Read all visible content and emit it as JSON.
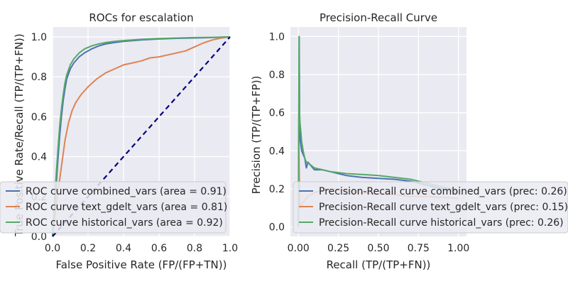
{
  "chart_data": [
    {
      "type": "line",
      "title": "ROCs for escalation",
      "xlabel": "False Positive Rate (FP/(FP+TN))",
      "ylabel": "True Positive Rate/Recall (TP/(TP+FN))",
      "xlim": [
        0,
        1
      ],
      "ylim": [
        0,
        1.05
      ],
      "xticks": [
        "0.0",
        "0.2",
        "0.4",
        "0.6",
        "0.8",
        "1.0"
      ],
      "yticks": [
        "0.0",
        "0.2",
        "0.4",
        "0.6",
        "0.8",
        "1.0"
      ],
      "grid": true,
      "legend_position": "lower-right",
      "series": [
        {
          "name": "ROC curve combined_vars (area = 0.91)",
          "color": "#4c72b0",
          "x": [
            0,
            0.01,
            0.02,
            0.03,
            0.04,
            0.05,
            0.06,
            0.07,
            0.08,
            0.1,
            0.12,
            0.15,
            0.18,
            0.22,
            0.26,
            0.3,
            0.35,
            0.4,
            0.5,
            0.6,
            0.7,
            0.8,
            0.9,
            1.0
          ],
          "y": [
            0,
            0.12,
            0.25,
            0.38,
            0.5,
            0.6,
            0.68,
            0.74,
            0.79,
            0.84,
            0.87,
            0.9,
            0.92,
            0.94,
            0.955,
            0.965,
            0.972,
            0.978,
            0.985,
            0.99,
            0.993,
            0.995,
            0.997,
            1.0
          ]
        },
        {
          "name": "ROC curve text_gdelt_vars (area = 0.81)",
          "color": "#dd8452",
          "x": [
            0,
            0.01,
            0.02,
            0.03,
            0.05,
            0.07,
            0.09,
            0.11,
            0.13,
            0.16,
            0.2,
            0.25,
            0.3,
            0.35,
            0.4,
            0.45,
            0.5,
            0.55,
            0.6,
            0.65,
            0.7,
            0.75,
            0.8,
            0.85,
            0.9,
            0.95,
            1.0
          ],
          "y": [
            0,
            0.08,
            0.15,
            0.22,
            0.35,
            0.48,
            0.57,
            0.63,
            0.67,
            0.71,
            0.75,
            0.79,
            0.82,
            0.84,
            0.86,
            0.87,
            0.88,
            0.895,
            0.9,
            0.91,
            0.92,
            0.93,
            0.95,
            0.97,
            0.985,
            0.995,
            1.0
          ]
        },
        {
          "name": "ROC curve historical_vars (area = 0.92)",
          "color": "#55a868",
          "x": [
            0,
            0.01,
            0.02,
            0.03,
            0.04,
            0.05,
            0.06,
            0.07,
            0.08,
            0.1,
            0.12,
            0.15,
            0.18,
            0.22,
            0.26,
            0.3,
            0.35,
            0.4,
            0.5,
            0.6,
            0.7,
            0.8,
            0.9,
            1.0
          ],
          "y": [
            0,
            0.15,
            0.3,
            0.43,
            0.55,
            0.64,
            0.71,
            0.77,
            0.81,
            0.86,
            0.89,
            0.92,
            0.94,
            0.955,
            0.965,
            0.972,
            0.978,
            0.982,
            0.988,
            0.992,
            0.995,
            0.997,
            0.998,
            1.0
          ]
        },
        {
          "name": "",
          "color": "#000080",
          "dashed": true,
          "x": [
            0,
            1
          ],
          "y": [
            0,
            1
          ]
        }
      ]
    },
    {
      "type": "line",
      "title": "Precision-Recall Curve",
      "xlabel": "Recall (TP/(TP+FN))",
      "ylabel": "Precision (TP/(TP+FP))",
      "xlim": [
        -0.05,
        1.05
      ],
      "ylim": [
        -0.05,
        1.05
      ],
      "xticks": [
        "0.00",
        "0.25",
        "0.50",
        "0.75",
        "1.00"
      ],
      "yticks": [
        "0.0",
        "0.2",
        "0.4",
        "0.6",
        "0.8",
        "1.0"
      ],
      "grid": true,
      "legend_position": "lower-right",
      "series": [
        {
          "name": "Precision-Recall curve combined_vars (prec: 0.26)",
          "color": "#4c72b0",
          "x": [
            0.0,
            0.005,
            0.008,
            0.012,
            0.02,
            0.03,
            0.04,
            0.05,
            0.06,
            0.08,
            0.1,
            0.15,
            0.2,
            0.25,
            0.3,
            0.4,
            0.5,
            0.6,
            0.7,
            0.8,
            0.9,
            1.0
          ],
          "y": [
            0.0,
            1.0,
            0.5,
            0.45,
            0.4,
            0.38,
            0.36,
            0.31,
            0.34,
            0.32,
            0.3,
            0.3,
            0.29,
            0.28,
            0.27,
            0.26,
            0.255,
            0.25,
            0.24,
            0.22,
            0.2,
            0.18
          ]
        },
        {
          "name": "Precision-Recall curve text_gdelt_vars (prec: 0.15)",
          "color": "#dd8452",
          "x": [
            0.0,
            0.003,
            0.006,
            0.01,
            0.02,
            0.04,
            0.06,
            0.1,
            0.15,
            0.2,
            0.3,
            0.4,
            0.5,
            0.6,
            0.7,
            0.8,
            0.9,
            1.0
          ],
          "y": [
            0.0,
            0.45,
            0.25,
            0.1,
            0.12,
            0.14,
            0.16,
            0.18,
            0.19,
            0.2,
            0.19,
            0.18,
            0.17,
            0.17,
            0.16,
            0.16,
            0.155,
            0.15
          ]
        },
        {
          "name": "Precision-Recall curve historical_vars (prec: 0.26)",
          "color": "#55a868",
          "x": [
            0.0,
            0.004,
            0.007,
            0.01,
            0.015,
            0.02,
            0.03,
            0.04,
            0.05,
            0.07,
            0.1,
            0.15,
            0.2,
            0.3,
            0.4,
            0.5,
            0.6,
            0.7,
            0.8,
            0.9,
            1.0
          ],
          "y": [
            0.0,
            1.0,
            0.6,
            0.55,
            0.5,
            0.45,
            0.4,
            0.36,
            0.34,
            0.33,
            0.31,
            0.3,
            0.29,
            0.28,
            0.275,
            0.27,
            0.26,
            0.25,
            0.23,
            0.21,
            0.19
          ]
        }
      ]
    }
  ]
}
